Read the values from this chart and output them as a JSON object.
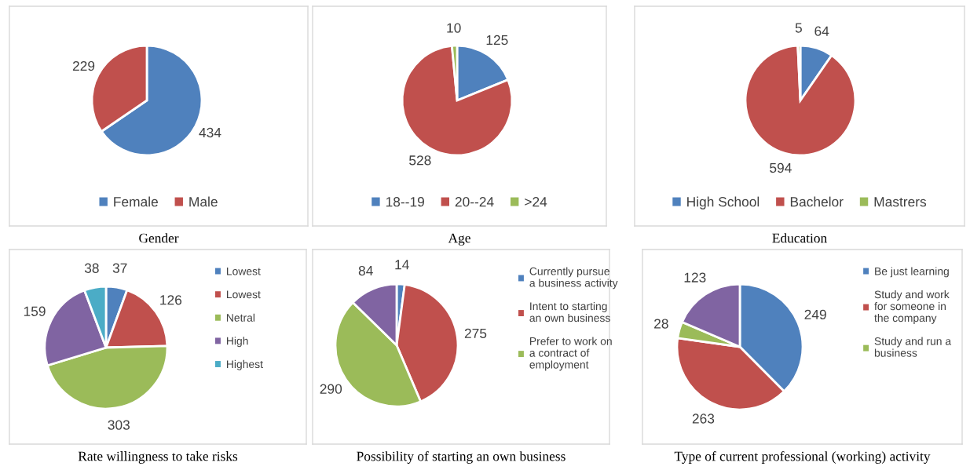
{
  "chart_data": [
    {
      "type": "pie",
      "title": "Gender",
      "categories": [
        "Female",
        "Male"
      ],
      "values": [
        434,
        229
      ],
      "colors": [
        "#4f81bd",
        "#c0504d"
      ],
      "data_labels": true,
      "legend": "bottom"
    },
    {
      "type": "pie",
      "title": "Age",
      "categories": [
        "18--19",
        "20--24",
        ">24"
      ],
      "values": [
        125,
        528,
        10
      ],
      "colors": [
        "#4f81bd",
        "#c0504d",
        "#9bbb59"
      ],
      "data_labels": true,
      "legend": "bottom"
    },
    {
      "type": "pie",
      "title": "Education",
      "categories": [
        "High School",
        "Bachelor",
        "Mastrers"
      ],
      "values": [
        64,
        594,
        5
      ],
      "colors": [
        "#4f81bd",
        "#c0504d",
        "#9bbb59"
      ],
      "data_labels": true,
      "legend": "bottom"
    },
    {
      "type": "pie",
      "title": "Rate willingness to take risks",
      "categories": [
        "Lowest",
        "Lowest",
        "Netral",
        "High",
        "Highest"
      ],
      "values": [
        37,
        126,
        303,
        159,
        38
      ],
      "colors": [
        "#4f81bd",
        "#c0504d",
        "#9bbb59",
        "#8064a2",
        "#4bacc6"
      ],
      "data_labels": true,
      "legend": "right"
    },
    {
      "type": "pie",
      "title": "Possibility of starting an own business",
      "categories": [
        "Currently pursue\na business activity",
        "Intent to starting\nan own business",
        "Prefer to work on\na contract of\nemployment",
        null
      ],
      "values": [
        14,
        275,
        290,
        84
      ],
      "colors": [
        "#4f81bd",
        "#c0504d",
        "#9bbb59",
        "#8064a2"
      ],
      "data_labels": true,
      "legend": "right"
    },
    {
      "type": "pie",
      "title": "Type of current professional (working) activity",
      "categories": [
        "Be just learning",
        "Study and work\nfor someone in\nthe company",
        "Study and run a\nbusiness",
        null
      ],
      "values": [
        249,
        263,
        28,
        123
      ],
      "colors": [
        "#4f81bd",
        "#c0504d",
        "#9bbb59",
        "#8064a2"
      ],
      "data_labels": true,
      "legend": "right"
    }
  ]
}
